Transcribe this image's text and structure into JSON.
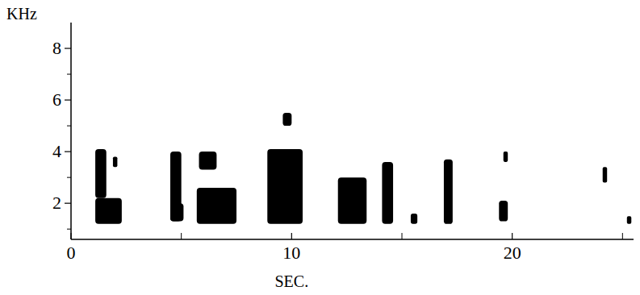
{
  "chart_data": {
    "type": "spectrogram",
    "x_label": "SEC.",
    "y_label": "KHz",
    "xlim": [
      0,
      25.5
    ],
    "ylim": [
      0.6,
      9
    ],
    "xticks": [
      0,
      10,
      20
    ],
    "minor_xticks": [
      5,
      15,
      25
    ],
    "yticks": [
      2,
      4,
      6,
      8
    ],
    "minor_yticks": [
      1,
      3,
      5,
      7
    ],
    "color": "#000000",
    "blobs": [
      {
        "x": [
          1.1,
          2.3
        ],
        "y": [
          1.2,
          2.2
        ]
      },
      {
        "x": [
          1.1,
          1.6
        ],
        "y": [
          2.2,
          4.1
        ]
      },
      {
        "x": [
          1.9,
          2.1
        ],
        "y": [
          3.4,
          3.8
        ]
      },
      {
        "x": [
          4.5,
          5.0
        ],
        "y": [
          1.3,
          4.0
        ]
      },
      {
        "x": [
          4.5,
          5.1
        ],
        "y": [
          1.3,
          2.0
        ]
      },
      {
        "x": [
          5.7,
          7.5
        ],
        "y": [
          1.2,
          2.6
        ]
      },
      {
        "x": [
          5.8,
          6.6
        ],
        "y": [
          3.3,
          4.0
        ]
      },
      {
        "x": [
          8.9,
          10.5
        ],
        "y": [
          1.2,
          4.1
        ]
      },
      {
        "x": [
          9.6,
          10.0
        ],
        "y": [
          5.0,
          5.5
        ]
      },
      {
        "x": [
          12.1,
          13.4
        ],
        "y": [
          1.2,
          3.0
        ]
      },
      {
        "x": [
          14.1,
          14.6
        ],
        "y": [
          1.2,
          3.6
        ]
      },
      {
        "x": [
          15.4,
          15.7
        ],
        "y": [
          1.2,
          1.6
        ]
      },
      {
        "x": [
          16.9,
          17.3
        ],
        "y": [
          1.2,
          3.7
        ]
      },
      {
        "x": [
          19.4,
          19.8
        ],
        "y": [
          1.3,
          2.1
        ]
      },
      {
        "x": [
          19.6,
          19.8
        ],
        "y": [
          3.6,
          4.0
        ]
      },
      {
        "x": [
          24.1,
          24.3
        ],
        "y": [
          2.8,
          3.4
        ]
      },
      {
        "x": [
          25.2,
          25.4
        ],
        "y": [
          1.2,
          1.5
        ]
      }
    ]
  }
}
